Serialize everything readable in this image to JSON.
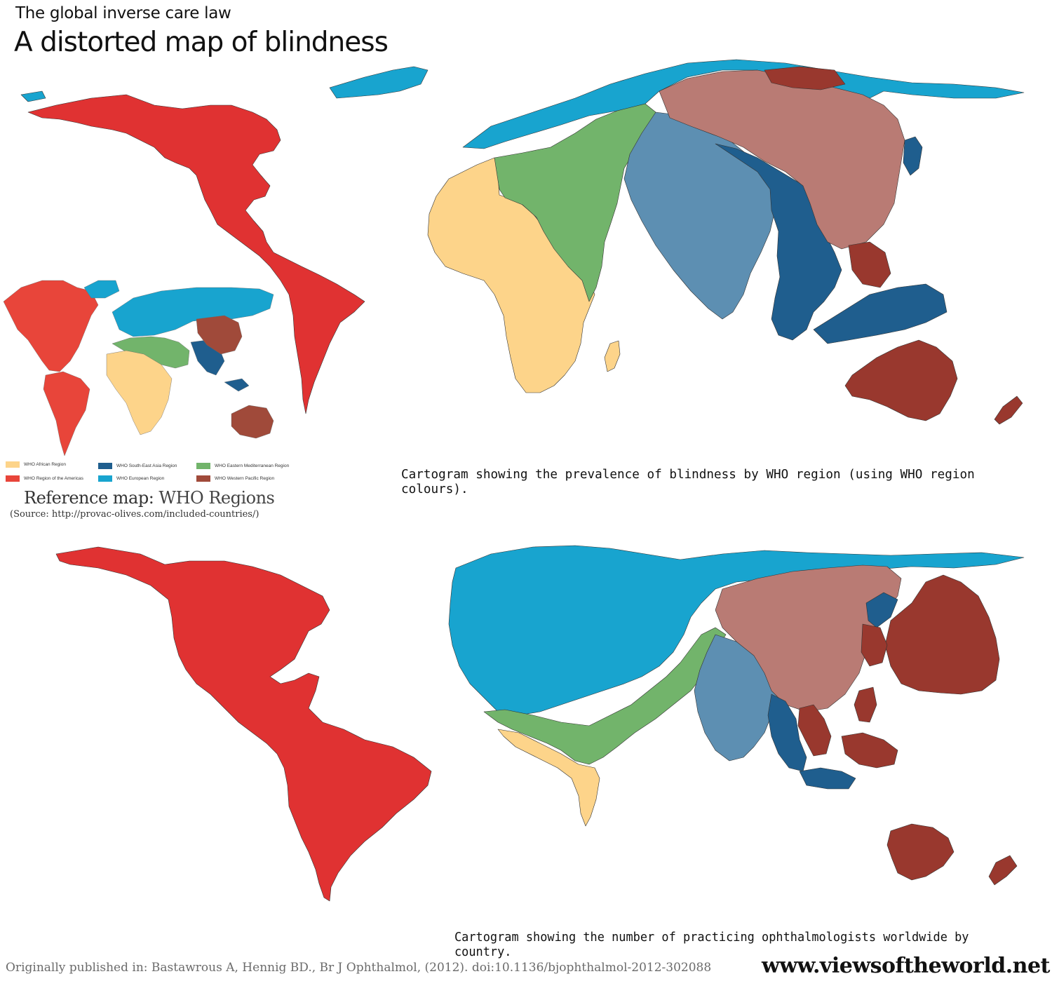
{
  "header": {
    "subtitle": "The global inverse care law",
    "title": "A distorted map of blindness"
  },
  "colors": {
    "african": "#fdd48a",
    "americas": "#e03232",
    "south_east_asia": "#1f5e8e",
    "european": "#18a4cf",
    "eastern_mediterranean": "#72b46b",
    "western_pacific": "#99382e",
    "china_light": "#b97b74",
    "india_light": "#5d8fb2"
  },
  "legend": {
    "items": [
      {
        "label": "WHO African Region",
        "color": "#fdd48a"
      },
      {
        "label": "WHO Region of the Americas",
        "color": "#e8453a"
      },
      {
        "label": "WHO South-East Asia Region",
        "color": "#1f5e8e"
      },
      {
        "label": "WHO European Region",
        "color": "#18a4cf"
      },
      {
        "label": "WHO Eastern Mediterranean Region",
        "color": "#72b46b"
      },
      {
        "label": "WHO Western Pacific Region",
        "color": "#a04a3a"
      }
    ]
  },
  "reference": {
    "title_part1": "Referen",
    "title_part2": "ce map: ",
    "title_part3": "WHO Regions",
    "source": "(Source: http://provac-olives.com/included-countries/)"
  },
  "captions": {
    "top": "Cartogram showing the prevalence of blindness by WHO region (using WHO region colours).",
    "bottom": "Cartogram showing the number of practicing ophthalmologists worldwide by country."
  },
  "footer": {
    "credit": "Originally published in: Bastawrous A, Hennig BD., Br  J  Ophthalmol, (2012). doi:10.1136/bjophthalmol-2012-302088",
    "site": "www.viewsoftheworld.net"
  }
}
